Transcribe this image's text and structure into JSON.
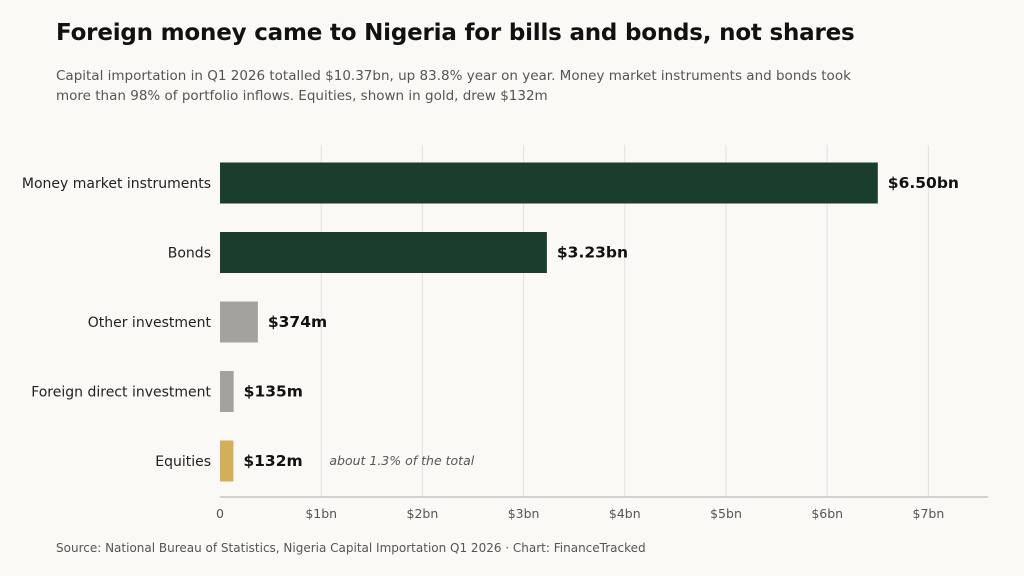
{
  "header": {
    "title": "Foreign money came to Nigeria for bills and bonds, not shares",
    "subtitle": "Capital importation in Q1 2026 totalled $10.37bn, up 83.8% year on year. Money market instruments and bonds took more than 98% of portfolio inflows. Equities, shown in gold, drew $132m"
  },
  "footer": {
    "source": "Source: National Bureau of Statistics, Nigeria Capital Importation Q1 2026  ·  Chart: FinanceTracked"
  },
  "chart_data": {
    "type": "bar",
    "orientation": "horizontal",
    "categories": [
      "Money market instruments",
      "Bonds",
      "Other investment",
      "Foreign direct investment",
      "Equities"
    ],
    "values": [
      6.5,
      3.23,
      0.374,
      0.135,
      0.132
    ],
    "value_labels": [
      "$6.50bn",
      "$3.23bn",
      "$374m",
      "$135m",
      "$132m"
    ],
    "bar_colors": [
      "#1b3d2c",
      "#1b3d2c",
      "#a3a29e",
      "#a3a29e",
      "#d4af5a"
    ],
    "units": "USD bn",
    "xlim": [
      0,
      7
    ],
    "x_ticks": [
      0,
      1,
      2,
      3,
      4,
      5,
      6,
      7
    ],
    "x_tick_labels": [
      "0",
      "$1bn",
      "$2bn",
      "$3bn",
      "$4bn",
      "$5bn",
      "$6bn",
      "$7bn"
    ],
    "grid": true,
    "annotation": {
      "category": "Equities",
      "text": "about 1.3% of the total"
    }
  }
}
